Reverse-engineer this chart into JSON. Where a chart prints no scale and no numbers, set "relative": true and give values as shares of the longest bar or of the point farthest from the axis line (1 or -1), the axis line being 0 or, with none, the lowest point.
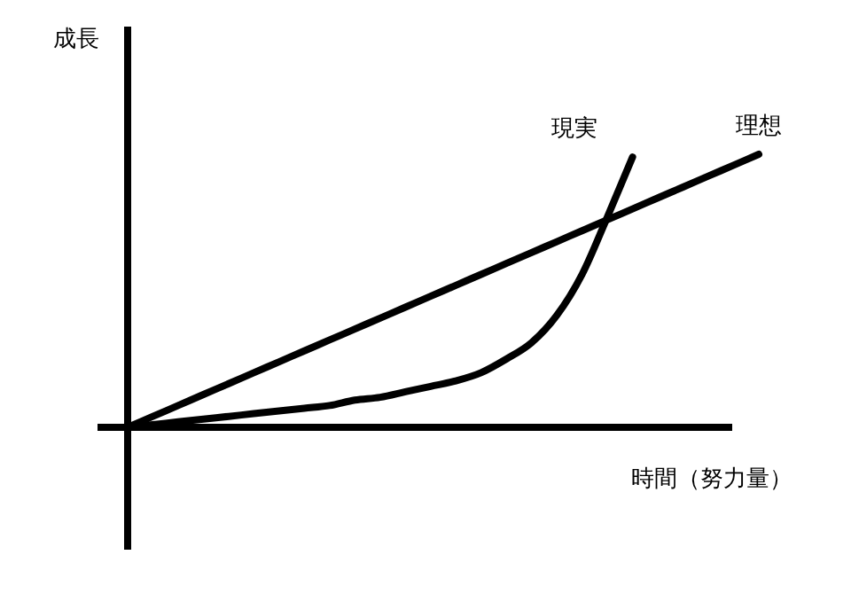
{
  "chart_data": {
    "type": "line",
    "relative": true,
    "xlabel": "時間（努力量）",
    "ylabel": "成長",
    "marker": "none",
    "line_style": "solid",
    "categories": [
      null,
      null,
      null,
      null,
      null,
      null,
      null,
      null,
      null,
      null,
      null,
      null,
      null,
      null,
      null,
      null,
      null,
      null,
      null,
      null,
      null,
      null,
      null,
      null,
      null,
      null
    ],
    "series": [
      {
        "name": "理想",
        "color": "#000000",
        "values": [
          0,
          0.04,
          0.08,
          0.12,
          0.16,
          0.2,
          0.24,
          0.28,
          0.32,
          0.36,
          0.4,
          0.44,
          0.48,
          0.52,
          0.56,
          0.6,
          0.64,
          0.68,
          0.72,
          0.76,
          0.8,
          0.84,
          0.88,
          0.92,
          0.96,
          1
        ]
      },
      {
        "name": "現実",
        "color": "#000000",
        "values": [
          0,
          0.01,
          0.02,
          0.03,
          0.04,
          0.05,
          0.06,
          0.07,
          0.08,
          0.1,
          0.11,
          0.13,
          0.15,
          0.17,
          0.2,
          0.25,
          0.31,
          0.41,
          0.56,
          0.77,
          0.99,
          null,
          null,
          null,
          null,
          null
        ]
      }
    ]
  }
}
